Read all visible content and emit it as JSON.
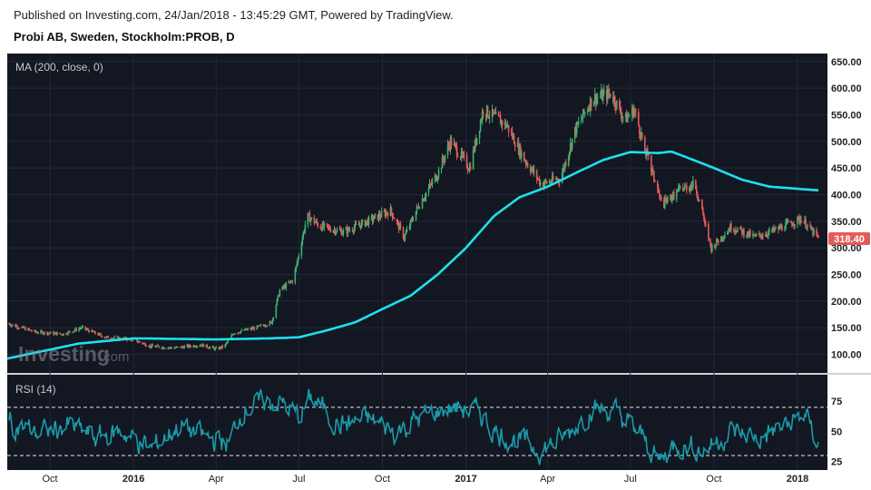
{
  "header": {
    "published": "Published on Investing.com, 24/Jan/2018 - 13:45:29 GMT, Powered by TradingView.",
    "symbol": "Probi AB, Sweden, Stockholm:PROB, D"
  },
  "watermark": {
    "brand": "Investing",
    "suffix": ".com"
  },
  "colors": {
    "background": "#131722",
    "ma": "#1ee0ee",
    "rsi": "#1a9aa8",
    "up": "#3cb371",
    "down": "#e35b5b",
    "price_tag": "#e35b5b"
  },
  "chart_data": [
    {
      "type": "candlestick",
      "indicator_label": "MA (200, close, 0)",
      "y_ticks": [
        "650.00",
        "600.00",
        "550.00",
        "500.00",
        "450.00",
        "400.00",
        "350.00",
        "300.00",
        "250.00",
        "200.00",
        "150.00",
        "100.00"
      ],
      "ylim": [
        65,
        665
      ],
      "last_price": "318.40",
      "x_labels": [
        "Oct",
        "2016",
        "Apr",
        "Jul",
        "Oct",
        "2017",
        "Apr",
        "Jul",
        "Oct",
        "2018"
      ],
      "price_path": [
        [
          "2015-08-15",
          158
        ],
        [
          "2015-09-15",
          142
        ],
        [
          "2015-10-15",
          138
        ],
        [
          "2015-11-05",
          150
        ],
        [
          "2015-12-01",
          132
        ],
        [
          "2015-12-31",
          128
        ],
        [
          "2016-01-20",
          115
        ],
        [
          "2016-02-15",
          112
        ],
        [
          "2016-03-15",
          118
        ],
        [
          "2016-04-01",
          110
        ],
        [
          "2016-04-10",
          115
        ],
        [
          "2016-04-20",
          140
        ],
        [
          "2016-05-15",
          150
        ],
        [
          "2016-06-01",
          160
        ],
        [
          "2016-06-10",
          220
        ],
        [
          "2016-06-25",
          240
        ],
        [
          "2016-07-10",
          360
        ],
        [
          "2016-07-25",
          340
        ],
        [
          "2016-08-20",
          330
        ],
        [
          "2016-09-15",
          350
        ],
        [
          "2016-10-10",
          370
        ],
        [
          "2016-10-25",
          320
        ],
        [
          "2016-11-10",
          380
        ],
        [
          "2016-12-01",
          440
        ],
        [
          "2016-12-15",
          500
        ],
        [
          "2017-01-05",
          450
        ],
        [
          "2017-01-20",
          560
        ],
        [
          "2017-02-15",
          530
        ],
        [
          "2017-03-05",
          470
        ],
        [
          "2017-03-25",
          420
        ],
        [
          "2017-04-15",
          430
        ],
        [
          "2017-05-01",
          520
        ],
        [
          "2017-05-20",
          580
        ],
        [
          "2017-06-10",
          590
        ],
        [
          "2017-06-25",
          540
        ],
        [
          "2017-07-05",
          560
        ],
        [
          "2017-07-20",
          470
        ],
        [
          "2017-08-05",
          380
        ],
        [
          "2017-08-25",
          410
        ],
        [
          "2017-09-10",
          420
        ],
        [
          "2017-09-28",
          300
        ],
        [
          "2017-10-20",
          340
        ],
        [
          "2017-11-15",
          320
        ],
        [
          "2017-12-10",
          335
        ],
        [
          "2018-01-05",
          355
        ],
        [
          "2018-01-24",
          318
        ]
      ],
      "ma_path": [
        [
          "2015-08-15",
          92
        ],
        [
          "2015-11-01",
          120
        ],
        [
          "2016-01-01",
          130
        ],
        [
          "2016-04-01",
          128
        ],
        [
          "2016-06-01",
          130
        ],
        [
          "2016-07-01",
          132
        ],
        [
          "2016-08-01",
          145
        ],
        [
          "2016-09-01",
          160
        ],
        [
          "2016-10-01",
          185
        ],
        [
          "2016-11-01",
          210
        ],
        [
          "2016-12-01",
          250
        ],
        [
          "2017-01-01",
          300
        ],
        [
          "2017-02-01",
          360
        ],
        [
          "2017-03-01",
          395
        ],
        [
          "2017-04-01",
          415
        ],
        [
          "2017-05-01",
          440
        ],
        [
          "2017-06-01",
          465
        ],
        [
          "2017-07-01",
          480
        ],
        [
          "2017-08-01",
          478
        ],
        [
          "2017-08-15",
          481
        ],
        [
          "2017-09-01",
          470
        ],
        [
          "2017-10-01",
          450
        ],
        [
          "2017-11-01",
          428
        ],
        [
          "2017-12-01",
          415
        ],
        [
          "2018-01-24",
          408
        ]
      ]
    },
    {
      "type": "line",
      "indicator_label": "RSI (14)",
      "y_ticks": [
        "75",
        "50",
        "25"
      ],
      "ylim": [
        18,
        97
      ],
      "levels": [
        70,
        30
      ],
      "rsi_path": [
        [
          "2015-08-15",
          58
        ],
        [
          "2015-09-20",
          48
        ],
        [
          "2015-10-20",
          55
        ],
        [
          "2015-11-20",
          45
        ],
        [
          "2015-12-20",
          50
        ],
        [
          "2016-01-20",
          35
        ],
        [
          "2016-02-20",
          55
        ],
        [
          "2016-03-20",
          45
        ],
        [
          "2016-04-15",
          40
        ],
        [
          "2016-05-01",
          70
        ],
        [
          "2016-06-10",
          75
        ],
        [
          "2016-07-01",
          62
        ],
        [
          "2016-07-15",
          78
        ],
        [
          "2016-08-15",
          55
        ],
        [
          "2016-09-15",
          60
        ],
        [
          "2016-10-15",
          50
        ],
        [
          "2016-11-15",
          62
        ],
        [
          "2016-12-15",
          70
        ],
        [
          "2017-01-15",
          66
        ],
        [
          "2017-02-05",
          48
        ],
        [
          "2017-03-01",
          42
        ],
        [
          "2017-03-25",
          35
        ],
        [
          "2017-04-20",
          45
        ],
        [
          "2017-05-20",
          70
        ],
        [
          "2017-06-15",
          65
        ],
        [
          "2017-07-01",
          55
        ],
        [
          "2017-07-20",
          40
        ],
        [
          "2017-08-01",
          25
        ],
        [
          "2017-08-20",
          40
        ],
        [
          "2017-09-20",
          35
        ],
        [
          "2017-10-20",
          50
        ],
        [
          "2017-11-20",
          44
        ],
        [
          "2017-12-20",
          55
        ],
        [
          "2018-01-08",
          64
        ],
        [
          "2018-01-24",
          40
        ]
      ]
    }
  ]
}
